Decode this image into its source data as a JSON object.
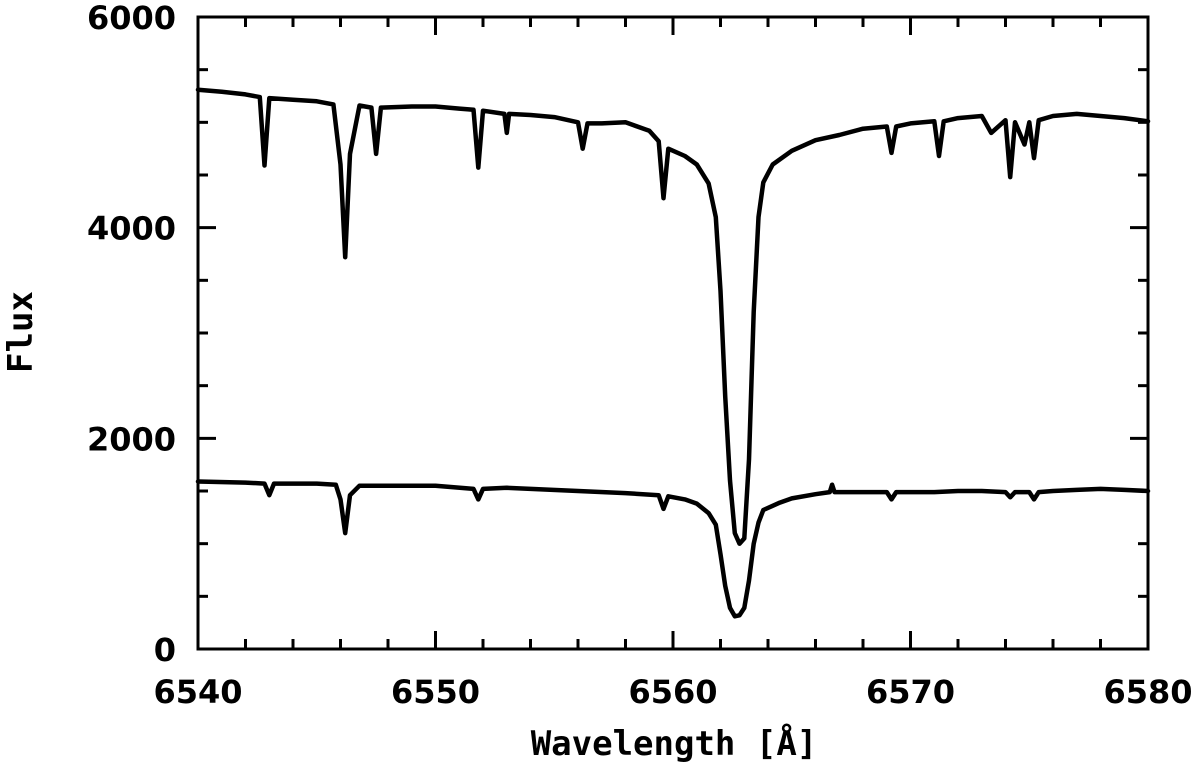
{
  "chart_data": {
    "type": "line",
    "title": "",
    "xlabel": "Wavelength [Å]",
    "ylabel": "Flux",
    "xlim": [
      6540,
      6580
    ],
    "ylim": [
      0,
      6000
    ],
    "x_ticks": [
      6540,
      6550,
      6560,
      6570,
      6580
    ],
    "y_ticks": [
      0,
      2000,
      4000,
      6000
    ],
    "x_minor_step": 2,
    "y_minor_step": 500,
    "grid": false,
    "legend": "none",
    "line_color": "#000000",
    "series": [
      {
        "points": [
          [
            6540.0,
            5310
          ],
          [
            6541.0,
            5290
          ],
          [
            6542.0,
            5265
          ],
          [
            6542.6,
            5240
          ],
          [
            6542.8,
            4590
          ],
          [
            6543.0,
            5230
          ],
          [
            6544.0,
            5215
          ],
          [
            6545.0,
            5200
          ],
          [
            6545.7,
            5170
          ],
          [
            6546.0,
            4600
          ],
          [
            6546.2,
            3720
          ],
          [
            6546.4,
            4700
          ],
          [
            6546.8,
            5160
          ],
          [
            6547.3,
            5140
          ],
          [
            6547.5,
            4700
          ],
          [
            6547.7,
            5140
          ],
          [
            6549.0,
            5150
          ],
          [
            6550.0,
            5150
          ],
          [
            6551.0,
            5130
          ],
          [
            6551.6,
            5120
          ],
          [
            6551.8,
            4570
          ],
          [
            6552.0,
            5110
          ],
          [
            6552.9,
            5080
          ],
          [
            6553.0,
            4900
          ],
          [
            6553.1,
            5080
          ],
          [
            6554.0,
            5070
          ],
          [
            6555.0,
            5050
          ],
          [
            6556.0,
            5000
          ],
          [
            6556.2,
            4750
          ],
          [
            6556.4,
            4990
          ],
          [
            6557.0,
            4990
          ],
          [
            6558.0,
            5000
          ],
          [
            6559.0,
            4920
          ],
          [
            6559.4,
            4820
          ],
          [
            6559.6,
            4280
          ],
          [
            6559.8,
            4750
          ],
          [
            6560.5,
            4680
          ],
          [
            6561.0,
            4600
          ],
          [
            6561.5,
            4420
          ],
          [
            6561.8,
            4100
          ],
          [
            6562.0,
            3400
          ],
          [
            6562.2,
            2400
          ],
          [
            6562.4,
            1600
          ],
          [
            6562.6,
            1100
          ],
          [
            6562.8,
            1000
          ],
          [
            6563.0,
            1050
          ],
          [
            6563.2,
            1800
          ],
          [
            6563.4,
            3200
          ],
          [
            6563.6,
            4100
          ],
          [
            6563.8,
            4430
          ],
          [
            6564.2,
            4600
          ],
          [
            6565.0,
            4730
          ],
          [
            6566.0,
            4830
          ],
          [
            6567.0,
            4880
          ],
          [
            6568.0,
            4940
          ],
          [
            6569.0,
            4960
          ],
          [
            6569.2,
            4710
          ],
          [
            6569.4,
            4960
          ],
          [
            6570.0,
            4990
          ],
          [
            6571.0,
            5010
          ],
          [
            6571.2,
            4680
          ],
          [
            6571.4,
            5010
          ],
          [
            6572.0,
            5040
          ],
          [
            6573.0,
            5060
          ],
          [
            6573.4,
            4900
          ],
          [
            6574.0,
            5020
          ],
          [
            6574.2,
            4480
          ],
          [
            6574.4,
            5000
          ],
          [
            6574.8,
            4790
          ],
          [
            6575.0,
            5000
          ],
          [
            6575.2,
            4660
          ],
          [
            6575.4,
            5020
          ],
          [
            6576.0,
            5060
          ],
          [
            6577.0,
            5080
          ],
          [
            6578.0,
            5060
          ],
          [
            6579.0,
            5040
          ],
          [
            6580.0,
            5010
          ]
        ]
      },
      {
        "points": [
          [
            6540.0,
            1590
          ],
          [
            6542.0,
            1580
          ],
          [
            6542.8,
            1570
          ],
          [
            6543.0,
            1460
          ],
          [
            6543.2,
            1570
          ],
          [
            6544.0,
            1570
          ],
          [
            6545.0,
            1570
          ],
          [
            6545.8,
            1560
          ],
          [
            6546.0,
            1420
          ],
          [
            6546.2,
            1100
          ],
          [
            6546.4,
            1460
          ],
          [
            6546.8,
            1550
          ],
          [
            6548.0,
            1550
          ],
          [
            6550.0,
            1550
          ],
          [
            6551.6,
            1520
          ],
          [
            6551.8,
            1420
          ],
          [
            6552.0,
            1520
          ],
          [
            6553.0,
            1530
          ],
          [
            6554.0,
            1520
          ],
          [
            6556.0,
            1500
          ],
          [
            6558.0,
            1480
          ],
          [
            6559.4,
            1460
          ],
          [
            6559.6,
            1330
          ],
          [
            6559.8,
            1450
          ],
          [
            6560.5,
            1420
          ],
          [
            6561.0,
            1380
          ],
          [
            6561.5,
            1290
          ],
          [
            6561.8,
            1180
          ],
          [
            6562.0,
            900
          ],
          [
            6562.2,
            600
          ],
          [
            6562.4,
            390
          ],
          [
            6562.6,
            310
          ],
          [
            6562.8,
            320
          ],
          [
            6563.0,
            390
          ],
          [
            6563.2,
            650
          ],
          [
            6563.4,
            1000
          ],
          [
            6563.6,
            1200
          ],
          [
            6563.8,
            1320
          ],
          [
            6564.5,
            1390
          ],
          [
            6565.0,
            1430
          ],
          [
            6566.0,
            1470
          ],
          [
            6566.6,
            1490
          ],
          [
            6566.7,
            1560
          ],
          [
            6566.8,
            1490
          ],
          [
            6568.0,
            1490
          ],
          [
            6569.0,
            1490
          ],
          [
            6569.2,
            1420
          ],
          [
            6569.4,
            1490
          ],
          [
            6570.0,
            1490
          ],
          [
            6571.0,
            1490
          ],
          [
            6572.0,
            1500
          ],
          [
            6573.0,
            1500
          ],
          [
            6574.0,
            1490
          ],
          [
            6574.2,
            1440
          ],
          [
            6574.4,
            1490
          ],
          [
            6575.0,
            1490
          ],
          [
            6575.2,
            1420
          ],
          [
            6575.4,
            1490
          ],
          [
            6576.0,
            1500
          ],
          [
            6577.0,
            1510
          ],
          [
            6578.0,
            1520
          ],
          [
            6579.0,
            1510
          ],
          [
            6580.0,
            1500
          ]
        ]
      }
    ]
  }
}
